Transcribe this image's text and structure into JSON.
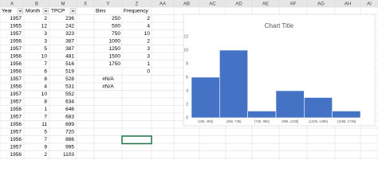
{
  "sheet": {
    "columns": [
      "A",
      "B",
      "M",
      "X",
      "Y",
      "Z",
      "AA",
      "AB",
      "AC",
      "AD",
      "AE",
      "AF",
      "AG",
      "AH",
      "AI"
    ],
    "headers": [
      "Year",
      "Month",
      "TPCP",
      "Bins",
      "Frequency"
    ],
    "rows": [
      [
        1957,
        2,
        236
      ],
      [
        1955,
        12,
        242
      ],
      [
        1957,
        3,
        323
      ],
      [
        1956,
        3,
        387
      ],
      [
        1957,
        5,
        387
      ],
      [
        1956,
        10,
        481
      ],
      [
        1956,
        7,
        516
      ],
      [
        1956,
        6,
        519
      ],
      [
        1957,
        8,
        528
      ],
      [
        1956,
        4,
        531
      ],
      [
        1957,
        10,
        552
      ],
      [
        1957,
        8,
        634
      ],
      [
        1956,
        1,
        646
      ],
      [
        1957,
        7,
        683
      ],
      [
        1956,
        11,
        699
      ],
      [
        1957,
        5,
        720
      ],
      [
        1956,
        7,
        886
      ],
      [
        1957,
        9,
        995
      ],
      [
        1956,
        2,
        1103
      ]
    ],
    "bins": [
      {
        "bin": 250,
        "frequency": 2
      },
      {
        "bin": 500,
        "frequency": 4
      },
      {
        "bin": 750,
        "frequency": 10
      },
      {
        "bin": 1000,
        "frequency": 2
      },
      {
        "bin": 1250,
        "frequency": 3
      },
      {
        "bin": 1500,
        "frequency": 3
      },
      {
        "bin": 1750,
        "frequency": 1
      },
      {
        "frequency": 0
      },
      {
        "bin": "#N/A"
      },
      {
        "bin": "#N/A"
      }
    ]
  },
  "chart_data": {
    "type": "bar",
    "title": "Chart Title",
    "categories": [
      "[236, 486]",
      "(486, 736]",
      "(736, 986]",
      "(986, 1236]",
      "(1236, 1486]",
      "(1486, 1736]"
    ],
    "values": [
      6,
      10,
      1,
      4,
      3,
      1
    ],
    "color": "#4472c4",
    "ylim": [
      0,
      12
    ],
    "yticks": [
      0,
      2,
      4,
      6,
      8,
      10,
      12
    ],
    "grid": false
  }
}
